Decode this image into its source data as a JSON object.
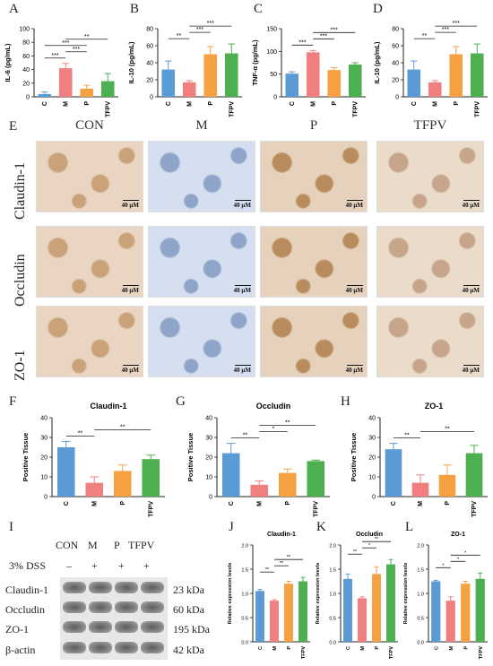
{
  "panels": {
    "A": "A",
    "B": "B",
    "C": "C",
    "D": "D",
    "E": "E",
    "F": "F",
    "G": "G",
    "H": "H",
    "I": "I",
    "J": "J",
    "K": "K",
    "L": "L"
  },
  "colors": {
    "C": "#5b9bd5",
    "M": "#f08080",
    "P": "#f5a142",
    "TFPV": "#4caf50"
  },
  "ihc": {
    "columns": [
      "CON",
      "M",
      "P",
      "TFPV"
    ],
    "rows": [
      "Claudin-1",
      "Occludin",
      "ZO-1"
    ],
    "scale": "40 μM"
  },
  "western": {
    "header_groups": [
      "CON",
      "M",
      "P",
      "TFPV"
    ],
    "dss_label": "3% DSS",
    "dss_signs": [
      "–",
      "+",
      "+",
      "+"
    ],
    "proteins": [
      "Claudin-1",
      "Occludin",
      "ZO-1",
      "β-actin"
    ],
    "kda": [
      "23 kDa",
      "60 kDa",
      "195 kDa",
      "42 kDa"
    ]
  },
  "chart_data": [
    {
      "id": "A",
      "type": "bar",
      "categories": [
        "C",
        "M",
        "P",
        "TFPV"
      ],
      "values": [
        4,
        42,
        12,
        23
      ],
      "errors": [
        3,
        7,
        5,
        11
      ],
      "ylabel": "IL-6 (pg/mL)",
      "ylim": [
        0,
        100
      ],
      "yticks": [
        0,
        20,
        40,
        60,
        80,
        100
      ],
      "sig": [
        {
          "a": 0,
          "b": 1,
          "label": "***"
        },
        {
          "a": 1,
          "b": 2,
          "label": "***"
        },
        {
          "a": 0,
          "b": 2,
          "label": "***"
        },
        {
          "a": 1,
          "b": 3,
          "label": "**"
        }
      ]
    },
    {
      "id": "B",
      "type": "bar",
      "categories": [
        "C",
        "M",
        "P",
        "TFPV"
      ],
      "values": [
        32,
        17,
        50,
        51
      ],
      "errors": [
        10,
        2,
        9,
        11
      ],
      "ylabel": "IL-10 (pg/mL)",
      "ylim": [
        0,
        80
      ],
      "yticks": [
        0,
        20,
        40,
        60,
        80
      ],
      "sig": [
        {
          "a": 0,
          "b": 1,
          "label": "**"
        },
        {
          "a": 1,
          "b": 2,
          "label": "***"
        },
        {
          "a": 1,
          "b": 3,
          "label": "***"
        }
      ]
    },
    {
      "id": "C",
      "type": "bar",
      "categories": [
        "C",
        "M",
        "P",
        "TFPV"
      ],
      "values": [
        51,
        98,
        59,
        71
      ],
      "errors": [
        4,
        4,
        5,
        4
      ],
      "ylabel": "TNF-α (pg/mL)",
      "ylim": [
        0,
        150
      ],
      "yticks": [
        0,
        50,
        100,
        150
      ],
      "sig": [
        {
          "a": 0,
          "b": 1,
          "label": "***"
        },
        {
          "a": 1,
          "b": 2,
          "label": "***"
        },
        {
          "a": 1,
          "b": 3,
          "label": "***"
        }
      ]
    },
    {
      "id": "D",
      "type": "bar",
      "categories": [
        "C",
        "M",
        "P",
        "TFPV"
      ],
      "values": [
        32,
        17,
        50,
        51
      ],
      "errors": [
        10,
        2,
        9,
        11
      ],
      "ylabel": "IL-10 (pg/mL)",
      "ylim": [
        0,
        80
      ],
      "yticks": [
        0,
        20,
        40,
        60,
        80
      ],
      "sig": [
        {
          "a": 0,
          "b": 1,
          "label": "**"
        },
        {
          "a": 1,
          "b": 2,
          "label": "***"
        },
        {
          "a": 1,
          "b": 3,
          "label": "***"
        }
      ]
    },
    {
      "id": "F",
      "type": "bar",
      "title": "Claudin-1",
      "categories": [
        "C",
        "M",
        "P",
        "TFPV"
      ],
      "values": [
        25,
        7,
        13,
        19
      ],
      "errors": [
        3,
        3,
        3,
        2
      ],
      "ylabel": "Positive Tissue",
      "ylim": [
        0,
        40
      ],
      "yticks": [
        0,
        10,
        20,
        30,
        40
      ],
      "sig": [
        {
          "a": 0,
          "b": 1,
          "label": "**"
        },
        {
          "a": 1,
          "b": 3,
          "label": "**"
        }
      ]
    },
    {
      "id": "G",
      "type": "bar",
      "title": "Occludin",
      "categories": [
        "C",
        "M",
        "P",
        "TFPV"
      ],
      "values": [
        22,
        6,
        12,
        18
      ],
      "errors": [
        5,
        2,
        2,
        0.5
      ],
      "ylabel": "Positive Tissue",
      "ylim": [
        0,
        40
      ],
      "yticks": [
        0,
        10,
        20,
        30,
        40
      ],
      "sig": [
        {
          "a": 0,
          "b": 1,
          "label": "**"
        },
        {
          "a": 1,
          "b": 2,
          "label": "*"
        },
        {
          "a": 1,
          "b": 3,
          "label": "**"
        }
      ]
    },
    {
      "id": "H",
      "type": "bar",
      "title": "ZO-1",
      "categories": [
        "C",
        "M",
        "P",
        "TFPV"
      ],
      "values": [
        24,
        7,
        11,
        22
      ],
      "errors": [
        3,
        4,
        5,
        4
      ],
      "ylabel": "Positive Tissue",
      "ylim": [
        0,
        40
      ],
      "yticks": [
        0,
        10,
        20,
        30,
        40
      ],
      "sig": [
        {
          "a": 0,
          "b": 1,
          "label": "**"
        },
        {
          "a": 1,
          "b": 3,
          "label": "**"
        }
      ]
    },
    {
      "id": "J",
      "type": "bar",
      "title": "Claudin-1",
      "categories": [
        "C",
        "M",
        "P",
        "TFPV"
      ],
      "values": [
        1.05,
        0.85,
        1.2,
        1.25
      ],
      "errors": [
        0.03,
        0.02,
        0.05,
        0.08
      ],
      "ylabel": "Relative expression levels",
      "ylim": [
        0,
        2
      ],
      "yticks": [
        0,
        0.5,
        1,
        1.5,
        2
      ],
      "tickfmt": "1",
      "sig": [
        {
          "a": 0,
          "b": 1,
          "label": "**"
        },
        {
          "a": 1,
          "b": 2,
          "label": "**"
        },
        {
          "a": 1,
          "b": 3,
          "label": "**"
        }
      ]
    },
    {
      "id": "K",
      "type": "bar",
      "title": "Occludin",
      "categories": [
        "C",
        "M",
        "P",
        "TFPV"
      ],
      "values": [
        1.3,
        0.9,
        1.4,
        1.6
      ],
      "errors": [
        0.1,
        0.03,
        0.15,
        0.1
      ],
      "ylabel": "Relative expression levels",
      "ylim": [
        0,
        2
      ],
      "yticks": [
        0,
        0.5,
        1,
        1.5,
        2
      ],
      "tickfmt": "1",
      "sig": [
        {
          "a": 0,
          "b": 1,
          "label": "**"
        },
        {
          "a": 1,
          "b": 2,
          "label": "*"
        },
        {
          "a": 1,
          "b": 3,
          "label": "**"
        }
      ]
    },
    {
      "id": "L",
      "type": "bar",
      "title": "ZO-1",
      "categories": [
        "C",
        "M",
        "P",
        "TFPV"
      ],
      "values": [
        1.25,
        0.85,
        1.2,
        1.3
      ],
      "errors": [
        0.02,
        0.08,
        0.05,
        0.12
      ],
      "ylabel": "Relative expression levels",
      "ylim": [
        0,
        2
      ],
      "yticks": [
        0,
        0.5,
        1,
        1.5,
        2
      ],
      "tickfmt": "1",
      "sig": [
        {
          "a": 0,
          "b": 1,
          "label": "*"
        },
        {
          "a": 1,
          "b": 2,
          "label": "*"
        },
        {
          "a": 1,
          "b": 3,
          "label": "*"
        }
      ]
    }
  ]
}
